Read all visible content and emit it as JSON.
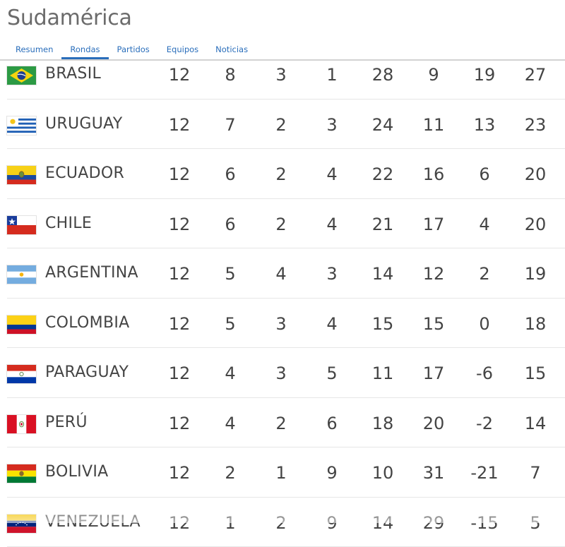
{
  "page": {
    "title": "Sudamérica"
  },
  "tabs": [
    {
      "label": "Resumen",
      "active": false
    },
    {
      "label": "Rondas",
      "active": true
    },
    {
      "label": "Partidos",
      "active": false
    },
    {
      "label": "Equipos",
      "active": false
    },
    {
      "label": "Noticias",
      "active": false
    }
  ],
  "standings": [
    {
      "team": "BRASIL",
      "flag": "brazil-flag-icon",
      "stats": [
        "12",
        "8",
        "3",
        "1",
        "28",
        "9",
        "19",
        "27"
      ]
    },
    {
      "team": "URUGUAY",
      "flag": "uruguay-flag-icon",
      "stats": [
        "12",
        "7",
        "2",
        "3",
        "24",
        "11",
        "13",
        "23"
      ]
    },
    {
      "team": "ECUADOR",
      "flag": "ecuador-flag-icon",
      "stats": [
        "12",
        "6",
        "2",
        "4",
        "22",
        "16",
        "6",
        "20"
      ]
    },
    {
      "team": "CHILE",
      "flag": "chile-flag-icon",
      "stats": [
        "12",
        "6",
        "2",
        "4",
        "21",
        "17",
        "4",
        "20"
      ]
    },
    {
      "team": "ARGENTINA",
      "flag": "argentina-flag-icon",
      "stats": [
        "12",
        "5",
        "4",
        "3",
        "14",
        "12",
        "2",
        "19"
      ]
    },
    {
      "team": "COLOMBIA",
      "flag": "colombia-flag-icon",
      "stats": [
        "12",
        "5",
        "3",
        "4",
        "15",
        "15",
        "0",
        "18"
      ]
    },
    {
      "team": "PARAGUAY",
      "flag": "paraguay-flag-icon",
      "stats": [
        "12",
        "4",
        "3",
        "5",
        "11",
        "17",
        "-6",
        "15"
      ]
    },
    {
      "team": "PERÚ",
      "flag": "peru-flag-icon",
      "stats": [
        "12",
        "4",
        "2",
        "6",
        "18",
        "20",
        "-2",
        "14"
      ]
    },
    {
      "team": "BOLIVIA",
      "flag": "bolivia-flag-icon",
      "stats": [
        "12",
        "2",
        "1",
        "9",
        "10",
        "31",
        "-21",
        "7"
      ]
    },
    {
      "team": "VENEZUELA",
      "flag": "venezuela-flag-icon",
      "stats": [
        "12",
        "1",
        "2",
        "9",
        "14",
        "29",
        "-15",
        "5"
      ]
    }
  ],
  "colors": {
    "accent": "#2a6ebb",
    "title": "#6b6b6b",
    "text": "#444444",
    "divider": "#e6e6e6"
  }
}
